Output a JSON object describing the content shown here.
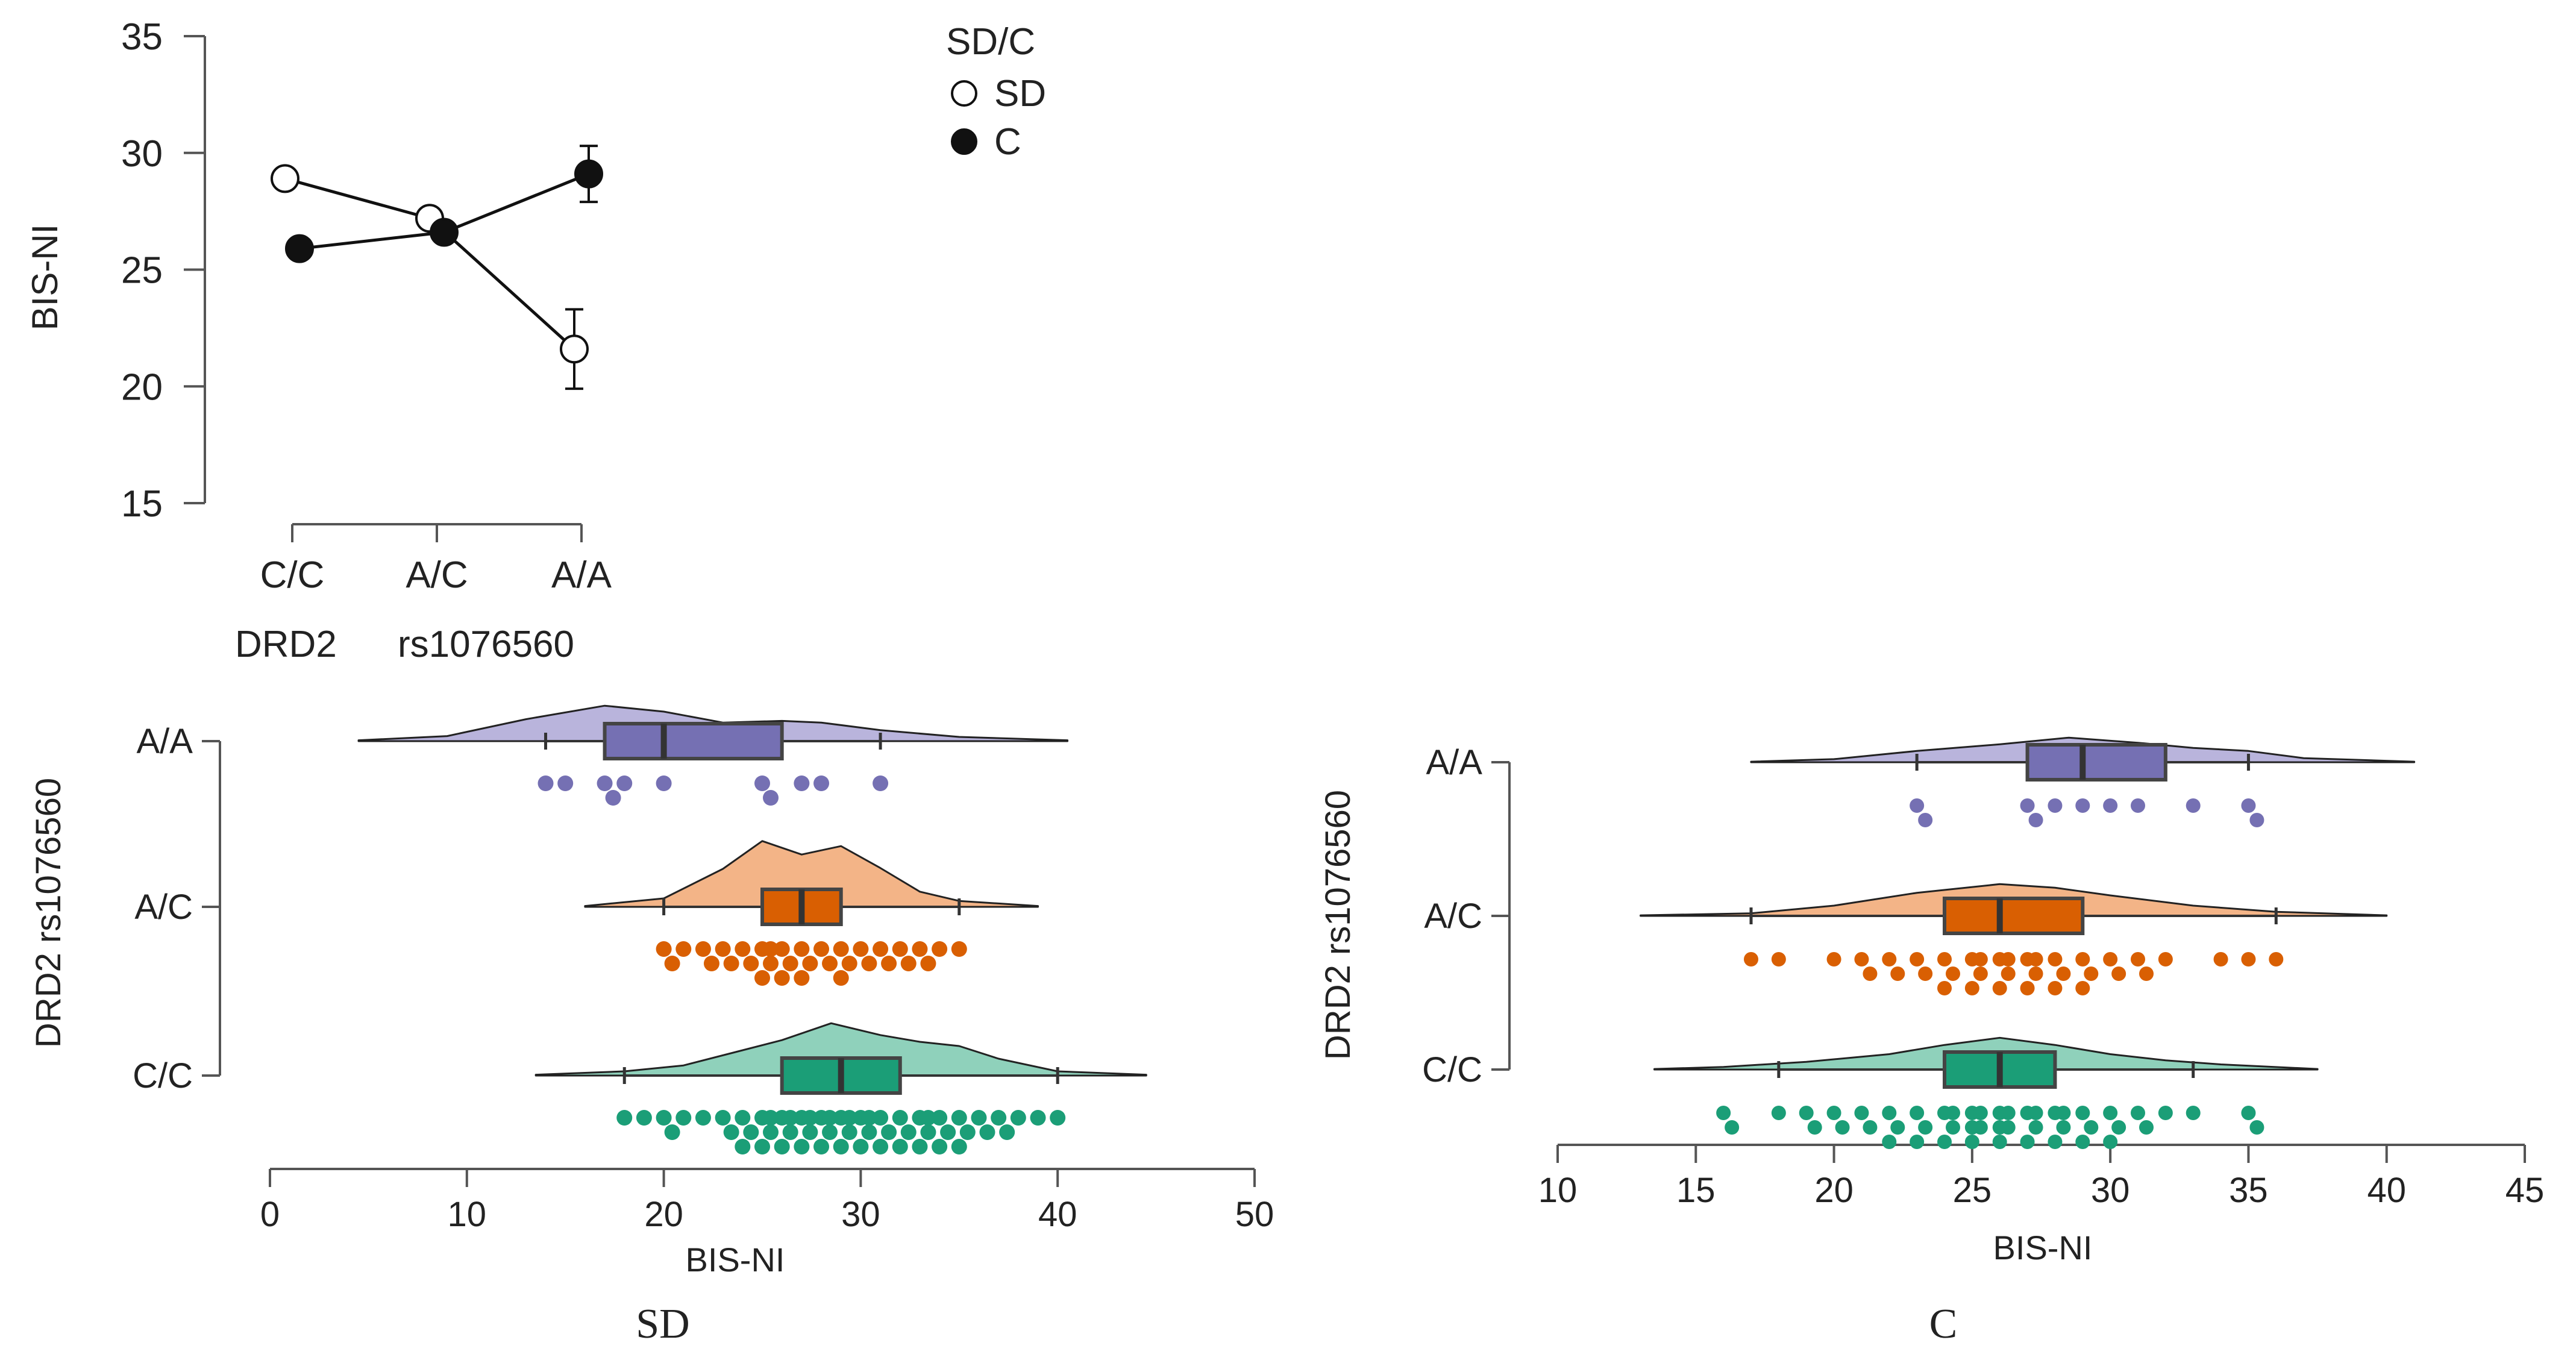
{
  "colors": {
    "aa_fill": "#b9b4dc",
    "aa_box": "#7570b3",
    "ac_fill": "#f3b487",
    "ac_box": "#d95f02",
    "cc_fill": "#8fd1bb",
    "cc_box": "#1b9e77",
    "line": "#111111"
  },
  "chart_data": [
    {
      "id": "interaction",
      "type": "line",
      "categories": [
        "C/C",
        "A/C",
        "A/A"
      ],
      "series": [
        {
          "name": "SD",
          "marker": "open-circle",
          "values": [
            28.9,
            27.2,
            21.6
          ],
          "errors": [
            null,
            null,
            1.7
          ]
        },
        {
          "name": "C",
          "marker": "filled-circle",
          "values": [
            25.9,
            26.6,
            29.1
          ],
          "errors": [
            null,
            null,
            1.2
          ]
        }
      ],
      "ylim": [
        15,
        35
      ],
      "yticks": [
        15,
        20,
        25,
        30,
        35
      ],
      "ylabel": "BIS-NI",
      "xlabel": [
        "DRD2",
        "rs1076560"
      ],
      "legend": {
        "title": "SD/C",
        "entries": [
          "SD",
          "C"
        ],
        "placement": "top-right"
      }
    },
    {
      "id": "raincloud-sd",
      "type": "raincloud",
      "title": "SD",
      "xlabel": "BIS-NI",
      "ylabel": "DRD2  rs1076560",
      "xlim": [
        0,
        50
      ],
      "xticks": [
        0,
        10,
        20,
        30,
        40,
        50
      ],
      "groups": [
        {
          "label": "A/A",
          "whisker_low": 14,
          "q1": 17,
          "median": 20,
          "q3": 26,
          "whisker_high": 31,
          "density_range": [
            4.5,
            40.5
          ],
          "density": [
            [
              4.5,
              0.01
            ],
            [
              9,
              0.06
            ],
            [
              13,
              0.26
            ],
            [
              17,
              0.42
            ],
            [
              20,
              0.35
            ],
            [
              23,
              0.22
            ],
            [
              26,
              0.24
            ],
            [
              28,
              0.22
            ],
            [
              31,
              0.13
            ],
            [
              35,
              0.05
            ],
            [
              40.5,
              0.01
            ]
          ],
          "points": [
            14,
            15,
            17,
            17,
            18,
            20,
            25,
            25,
            27,
            28,
            31
          ]
        },
        {
          "label": "A/C",
          "whisker_low": 20,
          "q1": 25,
          "median": 27,
          "q3": 29,
          "whisker_high": 35,
          "density_range": [
            16,
            39
          ],
          "density": [
            [
              16,
              0.01
            ],
            [
              20,
              0.1
            ],
            [
              23,
              0.45
            ],
            [
              25,
              0.78
            ],
            [
              27,
              0.62
            ],
            [
              29,
              0.72
            ],
            [
              31,
              0.46
            ],
            [
              33,
              0.18
            ],
            [
              35,
              0.07
            ],
            [
              39,
              0.01
            ]
          ],
          "points": [
            20,
            20,
            21,
            22,
            22,
            23,
            23,
            24,
            24,
            25,
            25,
            25,
            25,
            26,
            26,
            26,
            27,
            27,
            27,
            28,
            28,
            29,
            29,
            29,
            30,
            30,
            31,
            31,
            32,
            32,
            33,
            33,
            34,
            35
          ]
        },
        {
          "label": "C/C",
          "whisker_low": 18,
          "q1": 26,
          "median": 29,
          "q3": 32,
          "whisker_high": 40,
          "density_range": [
            13.5,
            44.5
          ],
          "density": [
            [
              13.5,
              0.01
            ],
            [
              18,
              0.05
            ],
            [
              21,
              0.12
            ],
            [
              24,
              0.3
            ],
            [
              26,
              0.42
            ],
            [
              28.5,
              0.62
            ],
            [
              31,
              0.48
            ],
            [
              33,
              0.4
            ],
            [
              35,
              0.35
            ],
            [
              37,
              0.2
            ],
            [
              40,
              0.05
            ],
            [
              44.5,
              0.01
            ]
          ],
          "points": [
            18,
            19,
            20,
            20,
            21,
            22,
            23,
            23,
            24,
            24,
            24,
            25,
            25,
            25,
            25,
            26,
            26,
            26,
            26,
            27,
            27,
            27,
            27,
            28,
            28,
            28,
            28,
            29,
            29,
            29,
            29,
            30,
            30,
            30,
            30,
            31,
            31,
            31,
            32,
            32,
            32,
            33,
            33,
            33,
            33,
            34,
            34,
            34,
            35,
            35,
            35,
            36,
            36,
            37,
            37,
            38,
            39,
            40
          ]
        }
      ]
    },
    {
      "id": "raincloud-c",
      "type": "raincloud",
      "title": "C",
      "xlabel": "BIS-NI",
      "ylabel": "DRD2  rs1076560",
      "xlim": [
        10,
        45
      ],
      "xticks": [
        10,
        15,
        20,
        25,
        30,
        35,
        40,
        45
      ],
      "groups": [
        {
          "label": "A/A",
          "whisker_low": 23,
          "q1": 27,
          "median": 29,
          "q3": 32,
          "whisker_high": 35,
          "density_range": [
            17,
            41
          ],
          "density": [
            [
              17,
              0.01
            ],
            [
              20,
              0.06
            ],
            [
              23,
              0.22
            ],
            [
              26,
              0.35
            ],
            [
              28.5,
              0.48
            ],
            [
              31,
              0.38
            ],
            [
              33,
              0.28
            ],
            [
              35,
              0.22
            ],
            [
              37,
              0.08
            ],
            [
              41,
              0.01
            ]
          ],
          "points": [
            23,
            23,
            27,
            27,
            28,
            29,
            30,
            31,
            33,
            35,
            35
          ]
        },
        {
          "label": "A/C",
          "whisker_low": 17,
          "q1": 24,
          "median": 26,
          "q3": 29,
          "whisker_high": 36,
          "density_range": [
            13,
            40
          ],
          "density": [
            [
              13,
              0.01
            ],
            [
              17,
              0.05
            ],
            [
              20,
              0.2
            ],
            [
              23,
              0.45
            ],
            [
              26,
              0.62
            ],
            [
              28,
              0.55
            ],
            [
              30,
              0.4
            ],
            [
              33,
              0.2
            ],
            [
              36,
              0.08
            ],
            [
              40,
              0.01
            ]
          ],
          "points": [
            17,
            18,
            20,
            21,
            21,
            22,
            22,
            23,
            23,
            24,
            24,
            24,
            25,
            25,
            25,
            25,
            26,
            26,
            26,
            26,
            27,
            27,
            27,
            27,
            28,
            28,
            28,
            29,
            29,
            29,
            30,
            30,
            31,
            31,
            32,
            34,
            35,
            36
          ]
        },
        {
          "label": "C/C",
          "whisker_low": 18,
          "q1": 24,
          "median": 26,
          "q3": 28,
          "whisker_high": 33,
          "density_range": [
            13.5,
            37.5
          ],
          "density": [
            [
              13.5,
              0.01
            ],
            [
              16,
              0.05
            ],
            [
              19,
              0.15
            ],
            [
              22,
              0.3
            ],
            [
              24,
              0.48
            ],
            [
              26,
              0.62
            ],
            [
              28,
              0.48
            ],
            [
              30,
              0.3
            ],
            [
              32,
              0.18
            ],
            [
              34,
              0.1
            ],
            [
              37.5,
              0.01
            ]
          ],
          "points": [
            16,
            16,
            18,
            19,
            19,
            20,
            20,
            21,
            21,
            22,
            22,
            22,
            23,
            23,
            23,
            24,
            24,
            24,
            24,
            25,
            25,
            25,
            25,
            25,
            26,
            26,
            26,
            26,
            26,
            27,
            27,
            27,
            27,
            28,
            28,
            28,
            28,
            29,
            29,
            29,
            30,
            30,
            30,
            31,
            31,
            32,
            33,
            35,
            35
          ]
        }
      ]
    }
  ]
}
